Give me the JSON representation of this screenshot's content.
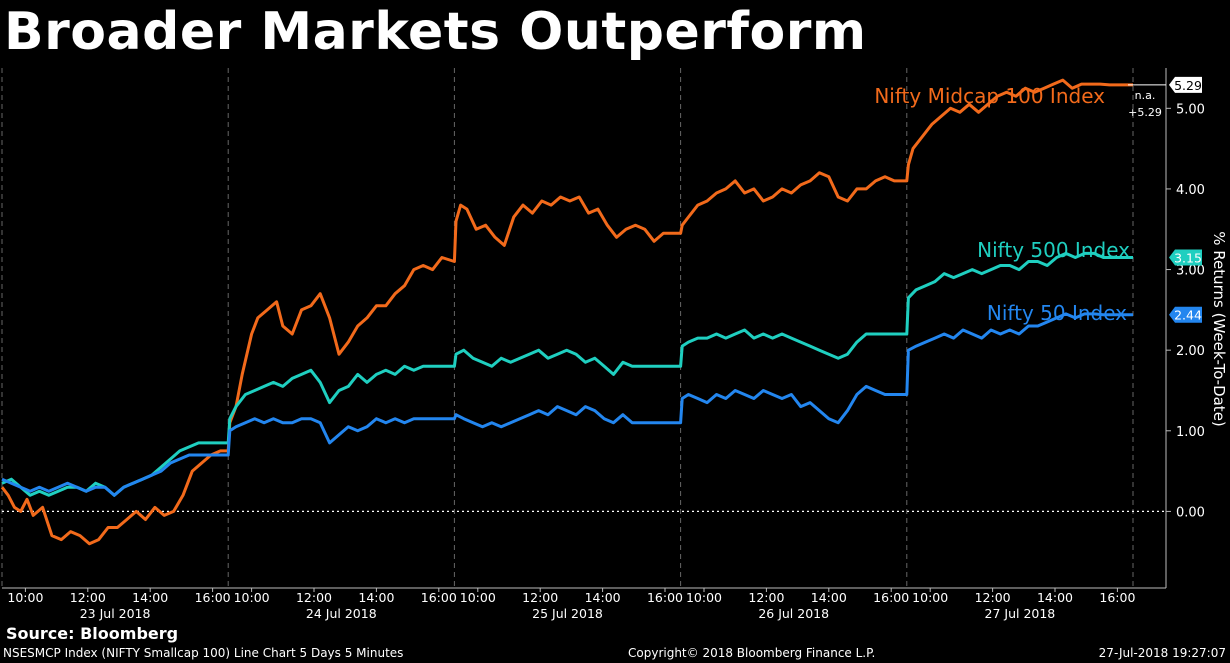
{
  "title": "Broader Markets Outperform",
  "source": "Source: Bloomberg",
  "footer": {
    "left": "NSESMCP Index (NIFTY Smallcap 100) Line Chart 5 Days 5 Minutes",
    "center": "Copyright© 2018 Bloomberg Finance L.P.",
    "right": "27-Jul-2018 19:27:07"
  },
  "chart_data": {
    "type": "line",
    "title": "Broader Markets Outperform",
    "ylabel": "% Returns (Week-To-Date)",
    "ylim": [
      -0.95,
      5.5
    ],
    "y_ticks": [
      "0.00",
      "1.00",
      "2.00",
      "3.00",
      "4.00",
      "5.00"
    ],
    "y_tick_values": [
      0,
      1,
      2,
      3,
      4,
      5
    ],
    "days": [
      "23 Jul 2018",
      "24 Jul 2018",
      "25 Jul 2018",
      "26 Jul 2018",
      "27 Jul 2018"
    ],
    "time_ticks": [
      "10:00",
      "12:00",
      "14:00",
      "16:00"
    ],
    "x_unit": "trading hours since 23 Jul 2018 open (9:15); 7.25 hours per day",
    "grid": "dashed vertical day separators; dotted zero line",
    "series": [
      {
        "name": "Nifty Midcap 100 Index",
        "color": "#f26a1b",
        "last_value": "5.29",
        "note": "n.a.",
        "note2": "+5.29",
        "x": [
          0,
          0.2,
          0.4,
          0.6,
          0.8,
          1.0,
          1.3,
          1.6,
          1.9,
          2.2,
          2.5,
          2.8,
          3.1,
          3.4,
          3.7,
          4.0,
          4.3,
          4.6,
          4.9,
          5.2,
          5.5,
          5.8,
          6.1,
          6.4,
          6.7,
          7.0,
          7.25,
          7.3,
          7.5,
          7.7,
          8.0,
          8.2,
          8.5,
          8.8,
          9.0,
          9.3,
          9.6,
          9.9,
          10.2,
          10.5,
          10.8,
          11.1,
          11.4,
          11.7,
          12.0,
          12.3,
          12.6,
          12.9,
          13.2,
          13.5,
          13.8,
          14.1,
          14.5,
          14.55,
          14.7,
          14.9,
          15.2,
          15.5,
          15.8,
          16.1,
          16.4,
          16.7,
          17.0,
          17.3,
          17.6,
          17.9,
          18.2,
          18.5,
          18.8,
          19.1,
          19.4,
          19.7,
          20.0,
          20.3,
          20.6,
          20.9,
          21.2,
          21.75,
          21.8,
          22.0,
          22.3,
          22.6,
          22.9,
          23.2,
          23.5,
          23.8,
          24.1,
          24.4,
          24.7,
          25.0,
          25.3,
          25.6,
          25.9,
          26.2,
          26.5,
          26.8,
          27.1,
          27.4,
          27.7,
          28.0,
          28.3,
          28.6,
          29.0,
          29.05,
          29.2,
          29.5,
          29.8,
          30.1,
          30.4,
          30.7,
          31.0,
          31.3,
          31.6,
          31.9,
          32.2,
          32.5,
          32.8,
          33.1,
          33.4,
          33.7,
          34.0,
          34.3,
          34.6,
          34.9,
          35.2,
          35.5,
          35.8,
          36.25
        ],
        "y": [
          0.3,
          0.2,
          0.05,
          0.0,
          0.15,
          -0.05,
          0.05,
          -0.3,
          -0.35,
          -0.25,
          -0.3,
          -0.4,
          -0.35,
          -0.2,
          -0.2,
          -0.1,
          0.0,
          -0.1,
          0.05,
          -0.05,
          0.0,
          0.2,
          0.5,
          0.6,
          0.7,
          0.75,
          0.75,
          1.1,
          1.3,
          1.7,
          2.2,
          2.4,
          2.5,
          2.6,
          2.3,
          2.2,
          2.5,
          2.55,
          2.7,
          2.4,
          1.95,
          2.1,
          2.3,
          2.4,
          2.55,
          2.55,
          2.7,
          2.8,
          3.0,
          3.05,
          3.0,
          3.15,
          3.1,
          3.6,
          3.8,
          3.75,
          3.5,
          3.55,
          3.4,
          3.3,
          3.65,
          3.8,
          3.7,
          3.85,
          3.8,
          3.9,
          3.85,
          3.9,
          3.7,
          3.75,
          3.55,
          3.4,
          3.5,
          3.55,
          3.5,
          3.35,
          3.45,
          3.45,
          3.55,
          3.65,
          3.8,
          3.85,
          3.95,
          4.0,
          4.1,
          3.95,
          4.0,
          3.85,
          3.9,
          4.0,
          3.95,
          4.05,
          4.1,
          4.2,
          4.15,
          3.9,
          3.85,
          4.0,
          4.0,
          4.1,
          4.15,
          4.1,
          4.1,
          4.3,
          4.5,
          4.65,
          4.8,
          4.9,
          5.0,
          4.95,
          5.05,
          4.95,
          5.05,
          5.15,
          5.2,
          5.15,
          5.25,
          5.2,
          5.25,
          5.3,
          5.35,
          5.25,
          5.3,
          5.3,
          5.3,
          5.29,
          5.29,
          5.29
        ]
      },
      {
        "name": "Nifty 500 Index",
        "color": "#1fcfc0",
        "last_value": "3.15",
        "x": [
          0,
          0.3,
          0.6,
          0.9,
          1.2,
          1.5,
          1.8,
          2.1,
          2.4,
          2.7,
          3.0,
          3.3,
          3.6,
          3.9,
          4.2,
          4.5,
          4.8,
          5.1,
          5.4,
          5.7,
          6.0,
          6.3,
          6.6,
          6.9,
          7.25,
          7.3,
          7.5,
          7.8,
          8.1,
          8.4,
          8.7,
          9.0,
          9.3,
          9.6,
          9.9,
          10.2,
          10.5,
          10.8,
          11.1,
          11.4,
          11.7,
          12.0,
          12.3,
          12.6,
          12.9,
          13.2,
          13.5,
          13.8,
          14.1,
          14.5,
          14.55,
          14.8,
          15.1,
          15.4,
          15.7,
          16.0,
          16.3,
          16.6,
          16.9,
          17.2,
          17.5,
          17.8,
          18.1,
          18.4,
          18.7,
          19.0,
          19.3,
          19.6,
          19.9,
          20.2,
          20.5,
          20.8,
          21.1,
          21.75,
          21.8,
          22.0,
          22.3,
          22.6,
          22.9,
          23.2,
          23.5,
          23.8,
          24.1,
          24.4,
          24.7,
          25.0,
          25.3,
          25.6,
          25.9,
          26.2,
          26.5,
          26.8,
          27.1,
          27.4,
          27.7,
          28.0,
          28.3,
          28.6,
          29.0,
          29.05,
          29.3,
          29.6,
          29.9,
          30.2,
          30.5,
          30.8,
          31.1,
          31.4,
          31.7,
          32.0,
          32.3,
          32.6,
          32.9,
          33.2,
          33.5,
          33.8,
          34.1,
          34.4,
          34.7,
          35.0,
          35.3,
          35.6,
          36.25
        ],
        "y": [
          0.35,
          0.4,
          0.3,
          0.2,
          0.25,
          0.2,
          0.25,
          0.3,
          0.3,
          0.25,
          0.35,
          0.3,
          0.2,
          0.3,
          0.35,
          0.4,
          0.45,
          0.55,
          0.65,
          0.75,
          0.8,
          0.85,
          0.85,
          0.85,
          0.85,
          1.15,
          1.3,
          1.45,
          1.5,
          1.55,
          1.6,
          1.55,
          1.65,
          1.7,
          1.75,
          1.6,
          1.35,
          1.5,
          1.55,
          1.7,
          1.6,
          1.7,
          1.75,
          1.7,
          1.8,
          1.75,
          1.8,
          1.8,
          1.8,
          1.8,
          1.95,
          2.0,
          1.9,
          1.85,
          1.8,
          1.9,
          1.85,
          1.9,
          1.95,
          2.0,
          1.9,
          1.95,
          2.0,
          1.95,
          1.85,
          1.9,
          1.8,
          1.7,
          1.85,
          1.8,
          1.8,
          1.8,
          1.8,
          1.8,
          2.05,
          2.1,
          2.15,
          2.15,
          2.2,
          2.15,
          2.2,
          2.25,
          2.15,
          2.2,
          2.15,
          2.2,
          2.15,
          2.1,
          2.05,
          2.0,
          1.95,
          1.9,
          1.95,
          2.1,
          2.2,
          2.2,
          2.2,
          2.2,
          2.2,
          2.65,
          2.75,
          2.8,
          2.85,
          2.95,
          2.9,
          2.95,
          3.0,
          2.95,
          3.0,
          3.05,
          3.05,
          3.0,
          3.1,
          3.1,
          3.05,
          3.15,
          3.2,
          3.15,
          3.2,
          3.2,
          3.15,
          3.15,
          3.15
        ]
      },
      {
        "name": "Nifty 50 Index",
        "color": "#2386ef",
        "last_value": "2.44",
        "x": [
          0,
          0.3,
          0.6,
          0.9,
          1.2,
          1.5,
          1.8,
          2.1,
          2.4,
          2.7,
          3.0,
          3.3,
          3.6,
          3.9,
          4.2,
          4.5,
          4.8,
          5.1,
          5.4,
          5.7,
          6.0,
          6.3,
          6.6,
          6.9,
          7.25,
          7.3,
          7.5,
          7.8,
          8.1,
          8.4,
          8.7,
          9.0,
          9.3,
          9.6,
          9.9,
          10.2,
          10.5,
          10.8,
          11.1,
          11.4,
          11.7,
          12.0,
          12.3,
          12.6,
          12.9,
          13.2,
          13.5,
          13.8,
          14.1,
          14.5,
          14.55,
          14.8,
          15.1,
          15.4,
          15.7,
          16.0,
          16.3,
          16.6,
          16.9,
          17.2,
          17.5,
          17.8,
          18.1,
          18.4,
          18.7,
          19.0,
          19.3,
          19.6,
          19.9,
          20.2,
          20.5,
          20.8,
          21.1,
          21.75,
          21.8,
          22.0,
          22.3,
          22.6,
          22.9,
          23.2,
          23.5,
          23.8,
          24.1,
          24.4,
          24.7,
          25.0,
          25.3,
          25.6,
          25.9,
          26.2,
          26.5,
          26.8,
          27.1,
          27.4,
          27.7,
          28.0,
          28.3,
          28.6,
          29.0,
          29.05,
          29.3,
          29.6,
          29.9,
          30.2,
          30.5,
          30.8,
          31.1,
          31.4,
          31.7,
          32.0,
          32.3,
          32.6,
          32.9,
          33.2,
          33.5,
          33.8,
          34.1,
          34.4,
          34.7,
          35.0,
          35.3,
          35.6,
          36.25
        ],
        "y": [
          0.4,
          0.35,
          0.3,
          0.25,
          0.3,
          0.25,
          0.3,
          0.35,
          0.3,
          0.25,
          0.3,
          0.3,
          0.2,
          0.3,
          0.35,
          0.4,
          0.45,
          0.5,
          0.6,
          0.65,
          0.7,
          0.7,
          0.7,
          0.7,
          0.7,
          1.0,
          1.05,
          1.1,
          1.15,
          1.1,
          1.15,
          1.1,
          1.1,
          1.15,
          1.15,
          1.1,
          0.85,
          0.95,
          1.05,
          1.0,
          1.05,
          1.15,
          1.1,
          1.15,
          1.1,
          1.15,
          1.15,
          1.15,
          1.15,
          1.15,
          1.2,
          1.15,
          1.1,
          1.05,
          1.1,
          1.05,
          1.1,
          1.15,
          1.2,
          1.25,
          1.2,
          1.3,
          1.25,
          1.2,
          1.3,
          1.25,
          1.15,
          1.1,
          1.2,
          1.1,
          1.1,
          1.1,
          1.1,
          1.1,
          1.4,
          1.45,
          1.4,
          1.35,
          1.45,
          1.4,
          1.5,
          1.45,
          1.4,
          1.5,
          1.45,
          1.4,
          1.45,
          1.3,
          1.35,
          1.25,
          1.15,
          1.1,
          1.25,
          1.45,
          1.55,
          1.5,
          1.45,
          1.45,
          1.45,
          2.0,
          2.05,
          2.1,
          2.15,
          2.2,
          2.15,
          2.25,
          2.2,
          2.15,
          2.25,
          2.2,
          2.25,
          2.2,
          2.3,
          2.3,
          2.35,
          2.4,
          2.45,
          2.4,
          2.45,
          2.45,
          2.44,
          2.44,
          2.44
        ]
      }
    ]
  }
}
